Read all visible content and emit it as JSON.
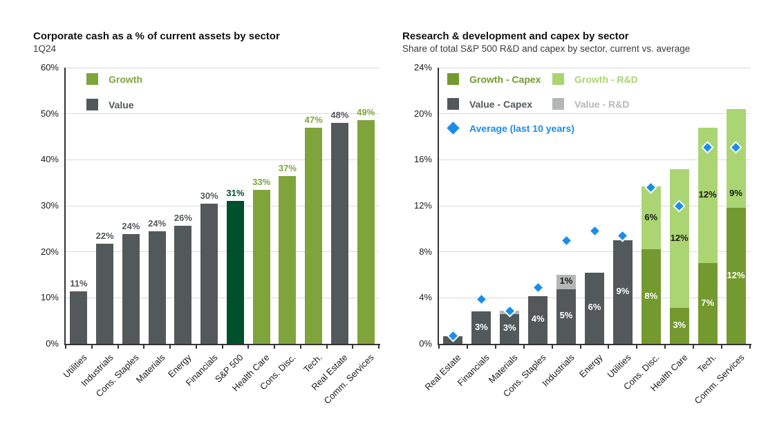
{
  "colors": {
    "growth": "#7fa43b",
    "value": "#53585a",
    "sp500": "#00502e",
    "growth_capex": "#74992f",
    "growth_rnd": "#abd573",
    "value_capex": "#53585a",
    "value_rnd": "#b5b7b7",
    "average": "#1b8ceb",
    "grid": "#d8d8d8",
    "axis": "#333333",
    "tick_text": "#1a1a1a",
    "label_on_dark": "#ffffff",
    "label_on_light": "#1a1a1a"
  },
  "chart_data": [
    {
      "type": "bar",
      "title": "Corporate cash as a % of current assets by sector",
      "subtitle": "1Q24",
      "xlabel": "",
      "ylabel": "",
      "ylim": [
        0,
        60
      ],
      "ytick_step": 10,
      "ytick_suffix": "%",
      "grid": true,
      "legend_position": "top-left-inside",
      "legend": [
        {
          "label": "Growth",
          "key": "growth"
        },
        {
          "label": "Value",
          "key": "value"
        }
      ],
      "categories": [
        "Utilities",
        "Industrials",
        "Cons. Staples",
        "Materials",
        "Energy",
        "Financials",
        "S&P 500",
        "Health Care",
        "Cons. Disc.",
        "Tech.",
        "Real Estate",
        "Comm. Services"
      ],
      "values": [
        11.4,
        21.8,
        23.9,
        24.4,
        25.7,
        30.4,
        31.0,
        33.4,
        36.5,
        47.0,
        48.0,
        48.6
      ],
      "labels": [
        "11%",
        "22%",
        "24%",
        "24%",
        "26%",
        "30%",
        "31%",
        "33%",
        "37%",
        "47%",
        "48%",
        "49%"
      ],
      "groups": [
        "value",
        "value",
        "value",
        "value",
        "value",
        "value",
        "sp500",
        "growth",
        "growth",
        "growth",
        "value",
        "growth"
      ]
    },
    {
      "type": "stacked-bar",
      "title": "Research & development and capex by sector",
      "subtitle": "Share of total S&P 500 R&D and capex by sector, current vs. average",
      "xlabel": "",
      "ylabel": "",
      "ylim": [
        0,
        24
      ],
      "ytick_step": 4,
      "ytick_suffix": "%",
      "grid": true,
      "legend_position": "top-left-inside",
      "legend": [
        {
          "label": "Growth - Capex",
          "key": "growth_capex"
        },
        {
          "label": "Growth - R&D",
          "key": "growth_rnd"
        },
        {
          "label": "Value - Capex",
          "key": "value_capex"
        },
        {
          "label": "Value - R&D",
          "key": "value_rnd"
        },
        {
          "label": "Average (last 10 years)",
          "key": "average",
          "marker": "diamond"
        }
      ],
      "bars": [
        {
          "category": "Real Estate",
          "style": "value",
          "capex": 0.65,
          "capex_label": "",
          "rnd": 0,
          "rnd_label": "",
          "avg": 0.7
        },
        {
          "category": "Financials",
          "style": "value",
          "capex": 2.8,
          "capex_label": "3%",
          "rnd": 0,
          "rnd_label": "",
          "avg": 3.9
        },
        {
          "category": "Materials",
          "style": "value",
          "capex": 2.6,
          "capex_label": "3%",
          "rnd": 0.3,
          "rnd_label": "",
          "avg": 2.85
        },
        {
          "category": "Cons. Staples",
          "style": "value",
          "capex": 4.15,
          "capex_label": "4%",
          "rnd": 0,
          "rnd_label": "",
          "avg": 4.9
        },
        {
          "category": "Industrials",
          "style": "value",
          "capex": 4.75,
          "capex_label": "5%",
          "rnd": 1.25,
          "rnd_label": "1%",
          "avg": 9.0
        },
        {
          "category": "Energy",
          "style": "value",
          "capex": 6.2,
          "capex_label": "6%",
          "rnd": 0,
          "rnd_label": "",
          "avg": 9.8
        },
        {
          "category": "Utilities",
          "style": "value",
          "capex": 9.0,
          "capex_label": "9%",
          "rnd": 0,
          "rnd_label": "",
          "avg": 9.4
        },
        {
          "category": "Cons. Disc.",
          "style": "growth",
          "capex": 8.2,
          "capex_label": "8%",
          "rnd": 5.5,
          "rnd_label": "6%",
          "avg": 13.6
        },
        {
          "category": "Health Care",
          "style": "growth",
          "capex": 3.1,
          "capex_label": "3%",
          "rnd": 12.1,
          "rnd_label": "12%",
          "avg": 12.0
        },
        {
          "category": "Tech.",
          "style": "growth",
          "capex": 7.0,
          "capex_label": "7%",
          "rnd": 11.8,
          "rnd_label": "12%",
          "avg": 17.1
        },
        {
          "category": "Comm. Services",
          "style": "growth",
          "capex": 11.8,
          "capex_label": "12%",
          "rnd": 8.6,
          "rnd_label": "9%",
          "avg": 17.1,
          "rnd_label_at": 13.0
        }
      ]
    }
  ]
}
